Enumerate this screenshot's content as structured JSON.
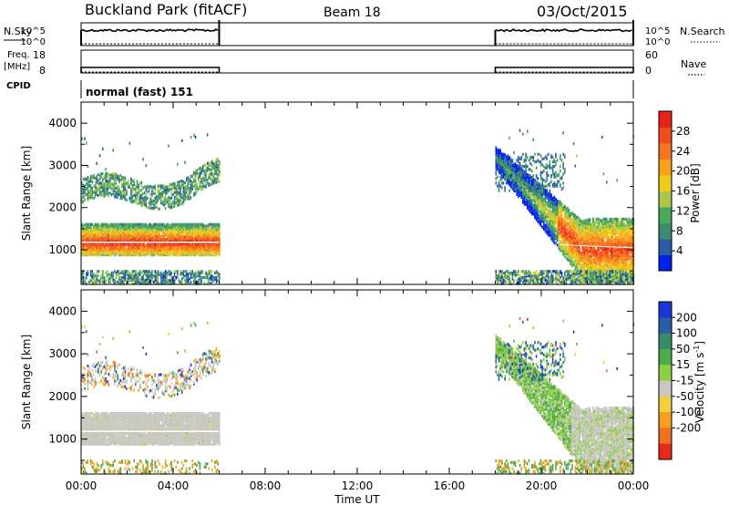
{
  "header": {
    "station": "Buckland Park (fitACF)",
    "beam": "Beam 18",
    "date": "03/Oct/2015"
  },
  "top_panel": {
    "left_label_top": "N.Sky",
    "left_label_bottom": "",
    "left_ticks": [
      "10^5",
      "10^0"
    ],
    "right_ticks": [
      "10^5",
      "10^0"
    ],
    "right_label": "N.Search",
    "nsky_level": "10^4 (approx, constant while operating)"
  },
  "freq_panel": {
    "left_label_1": "Freq.",
    "left_label_2": "[MHz]",
    "left_ticks": [
      "18",
      "8"
    ],
    "right_ticks": [
      "60",
      "0"
    ],
    "right_label": "Nave",
    "cpid_label": "CPID"
  },
  "cpid": {
    "mode": "normal (fast) 151"
  },
  "time_axis": {
    "label": "Time UT",
    "ticks": [
      "00:00",
      "04:00",
      "08:00",
      "12:00",
      "16:00",
      "20:00",
      "00:00"
    ]
  },
  "operation_windows_ut_hours": [
    [
      0,
      6
    ],
    [
      18,
      24
    ]
  ],
  "chart_data": [
    {
      "type": "heatmap",
      "title": "Power",
      "xlabel": "Time UT",
      "ylabel": "Slant Range [km]",
      "xlim": [
        0,
        24
      ],
      "ylim": [
        180,
        4500
      ],
      "yticks": [
        1000,
        2000,
        3000,
        4000
      ],
      "colorbar": {
        "label": "Power [dB]",
        "ticks": [
          4,
          8,
          12,
          16,
          20,
          24,
          28
        ],
        "range": [
          0,
          32
        ],
        "colors": [
          "#0022ee",
          "#2a5fa8",
          "#3d8a6f",
          "#49a85a",
          "#a8c84a",
          "#f0cc1a",
          "#f7a01a",
          "#f5751f",
          "#f04d1c",
          "#e8221c"
        ]
      },
      "features": [
        {
          "name": "strong echo band",
          "t_start": 0,
          "t_end": 6,
          "range_km": [
            850,
            1600
          ],
          "peak_power_db": 28
        },
        {
          "name": "weak band",
          "t_start": 0,
          "t_end": 6,
          "range_km": [
            2100,
            2700
          ],
          "peak_power_db": 12
        },
        {
          "name": "descending echo",
          "t_start": 18,
          "t_end": 24,
          "range_km_start": 3200,
          "range_km_end": 1000,
          "peak_power_db": 28
        }
      ]
    },
    {
      "type": "heatmap",
      "title": "Velocity",
      "xlabel": "Time UT",
      "ylabel": "Slant Range [km]",
      "xlim": [
        0,
        24
      ],
      "ylim": [
        180,
        4500
      ],
      "yticks": [
        1000,
        2000,
        3000,
        4000
      ],
      "colorbar": {
        "label": "Velocity [m s-1]",
        "ticks": [
          200,
          100,
          50,
          15,
          -15,
          -50,
          -100,
          -200
        ],
        "colors": [
          "#1a36d8",
          "#2a5fa8",
          "#3a8a6a",
          "#4daa48",
          "#8cd040",
          "#c8c8c0",
          "#f0d040",
          "#f5a020",
          "#f07020",
          "#e82a1c"
        ]
      },
      "features": [
        {
          "name": "ground scatter band",
          "t_start": 0,
          "t_end": 6,
          "range_km": [
            900,
            1650
          ],
          "velocity_ms": 0
        },
        {
          "name": "descending echo",
          "t_start": 18,
          "t_end": 24,
          "range_km_start": 3200,
          "range_km_end": 1000,
          "velocity_ms": 40
        }
      ]
    }
  ]
}
